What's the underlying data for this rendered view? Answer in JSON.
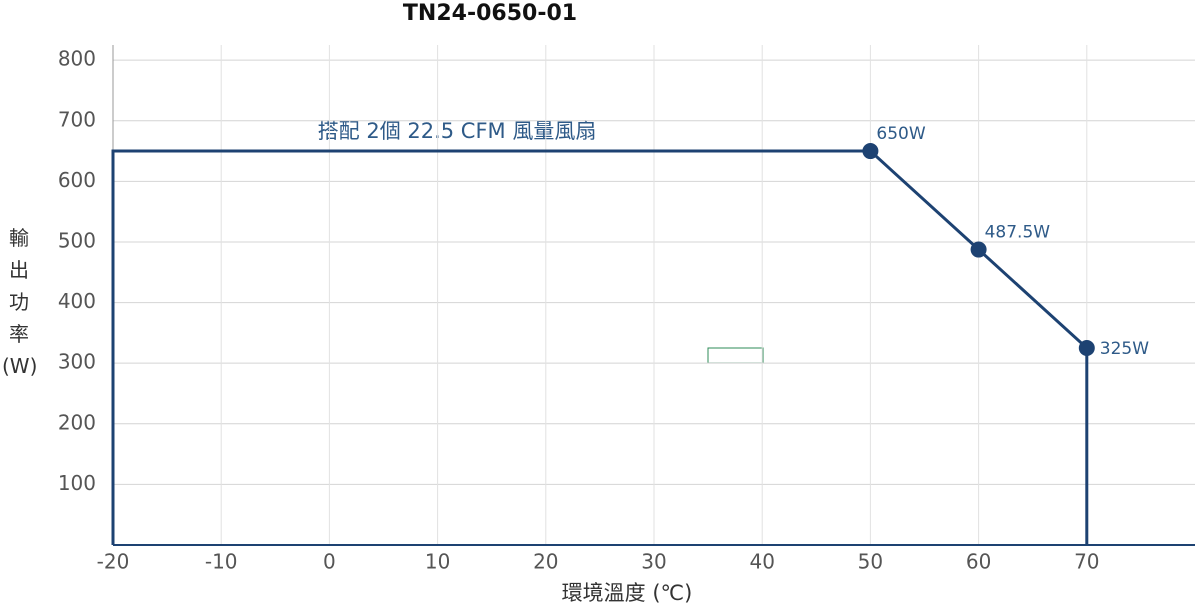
{
  "chart_data": {
    "type": "line",
    "title": "TN24-0650-01",
    "xlabel": "環境溫度 (℃)",
    "ylabel": "輸出功率(W)",
    "annotation": "搭配 2個 22.5 CFM 風量風扇",
    "x": [
      -20,
      -20,
      50,
      60,
      70,
      70
    ],
    "series": [
      {
        "color": "#1d4272",
        "values": [
          0,
          650,
          650,
          487.5,
          325,
          0
        ],
        "value_labels": [
          null,
          null,
          "650W",
          "487.5W",
          "325W",
          null
        ]
      }
    ],
    "xlim": [
      -20,
      80
    ],
    "xticks": [
      -20,
      -10,
      0,
      10,
      20,
      30,
      40,
      50,
      60,
      70
    ],
    "ylim": [
      0,
      825
    ],
    "yticks": [
      100,
      200,
      300,
      400,
      500,
      600,
      700,
      800
    ],
    "grid": true
  }
}
